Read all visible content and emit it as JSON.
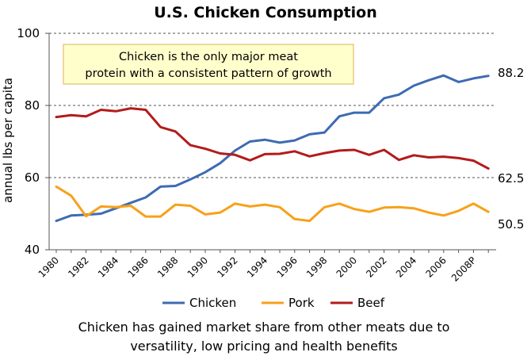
{
  "chart_data": {
    "type": "line",
    "title": "U.S. Chicken Consumption",
    "ylabel": "annual lbs per capita",
    "xlabel": "",
    "ylim": [
      40,
      100
    ],
    "yticks": [
      40,
      60,
      80,
      100
    ],
    "x": [
      "1980",
      "1981",
      "1982",
      "1983",
      "1984",
      "1985",
      "1986",
      "1987",
      "1988",
      "1989",
      "1990",
      "1991",
      "1992",
      "1993",
      "1994",
      "1995",
      "1996",
      "1997",
      "1998",
      "1999",
      "2000",
      "2001",
      "2002",
      "2003",
      "2004",
      "2005",
      "2006",
      "2007",
      "2008P",
      "2009"
    ],
    "xtick_labels": [
      "1980",
      "1982",
      "1984",
      "1986",
      "1988",
      "1990",
      "1992",
      "1994",
      "1996",
      "1998",
      "2000",
      "2002",
      "2004",
      "2006",
      "2008P"
    ],
    "grid": "dashed horizontal at 60, 80, 100",
    "legend": "bottom",
    "series": [
      {
        "name": "Chicken",
        "color": "#3d6bb3",
        "values": [
          48.0,
          49.5,
          49.7,
          50.0,
          51.5,
          53.0,
          54.5,
          57.5,
          57.7,
          59.5,
          61.5,
          64.0,
          67.5,
          70.0,
          70.5,
          69.7,
          70.3,
          72.0,
          72.5,
          77.0,
          78.0,
          78.0,
          82.0,
          83.0,
          85.5,
          87.0,
          88.3,
          86.5,
          87.5,
          88.2
        ]
      },
      {
        "name": "Pork",
        "color": "#f7a11a",
        "values": [
          57.5,
          55.0,
          49.3,
          52.0,
          51.8,
          52.2,
          49.2,
          49.2,
          52.5,
          52.2,
          49.8,
          50.3,
          52.8,
          52.0,
          52.5,
          51.8,
          48.5,
          48.0,
          51.8,
          52.8,
          51.3,
          50.5,
          51.7,
          51.8,
          51.5,
          50.3,
          49.5,
          50.8,
          52.8,
          50.5
        ]
      },
      {
        "name": "Beef",
        "color": "#b31b1b",
        "values": [
          76.8,
          77.3,
          77.0,
          78.8,
          78.4,
          79.2,
          78.8,
          74.0,
          72.8,
          69.0,
          68.0,
          66.7,
          66.3,
          64.8,
          66.5,
          66.6,
          67.3,
          65.9,
          66.8,
          67.5,
          67.7,
          66.3,
          67.7,
          64.9,
          66.2,
          65.6,
          65.8,
          65.4,
          64.7,
          62.5
        ]
      }
    ],
    "end_labels": [
      "88.2",
      "62.5",
      "50.5"
    ],
    "annotation": {
      "lines": [
        "Chicken is the only major meat",
        "protein with a consistent pattern of growth"
      ]
    },
    "caption": {
      "lines": [
        "Chicken has gained market share from other meats due to",
        "versatility, low pricing and health benefits"
      ]
    }
  },
  "colors": {
    "callout_fill": "#ffffcc",
    "callout_border": "#e0b050",
    "grid": "#555555"
  }
}
